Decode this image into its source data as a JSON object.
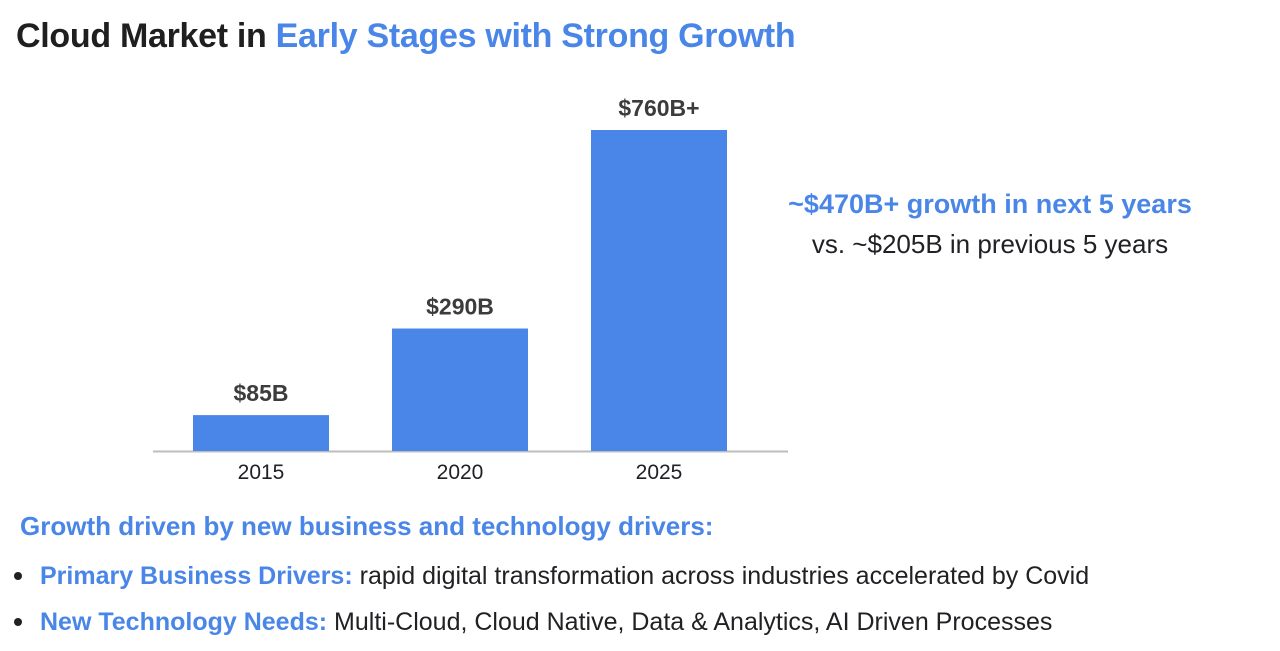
{
  "title": {
    "part1": "Cloud Market in ",
    "part2": "Early Stages with Strong Growth"
  },
  "chart_data": {
    "type": "bar",
    "categories": [
      "2015",
      "2020",
      "2025"
    ],
    "values": [
      85,
      290,
      760
    ],
    "data_labels": [
      "$85B",
      "$290B",
      "$760B+"
    ],
    "unit": "$B",
    "title": "",
    "xlabel": "",
    "ylabel": "",
    "ylim": [
      0,
      760
    ],
    "grid": false,
    "legend": "none",
    "bar_color": "#4a86e8"
  },
  "callout": {
    "headline": "~$470B+ growth in next 5 years",
    "subline": "vs. ~$205B in previous 5 years"
  },
  "drivers": {
    "heading": "Growth driven by new business and technology drivers:",
    "items": [
      {
        "label": "Primary Business Drivers:",
        "text": " rapid digital transformation across industries accelerated by Covid"
      },
      {
        "label": "New Technology Needs:",
        "text": " Multi-Cloud, Cloud Native, Data & Analytics, AI Driven Processes"
      }
    ]
  },
  "colors": {
    "accent": "#4a86e8",
    "text": "#202124",
    "axis": "#bdbdbd"
  }
}
